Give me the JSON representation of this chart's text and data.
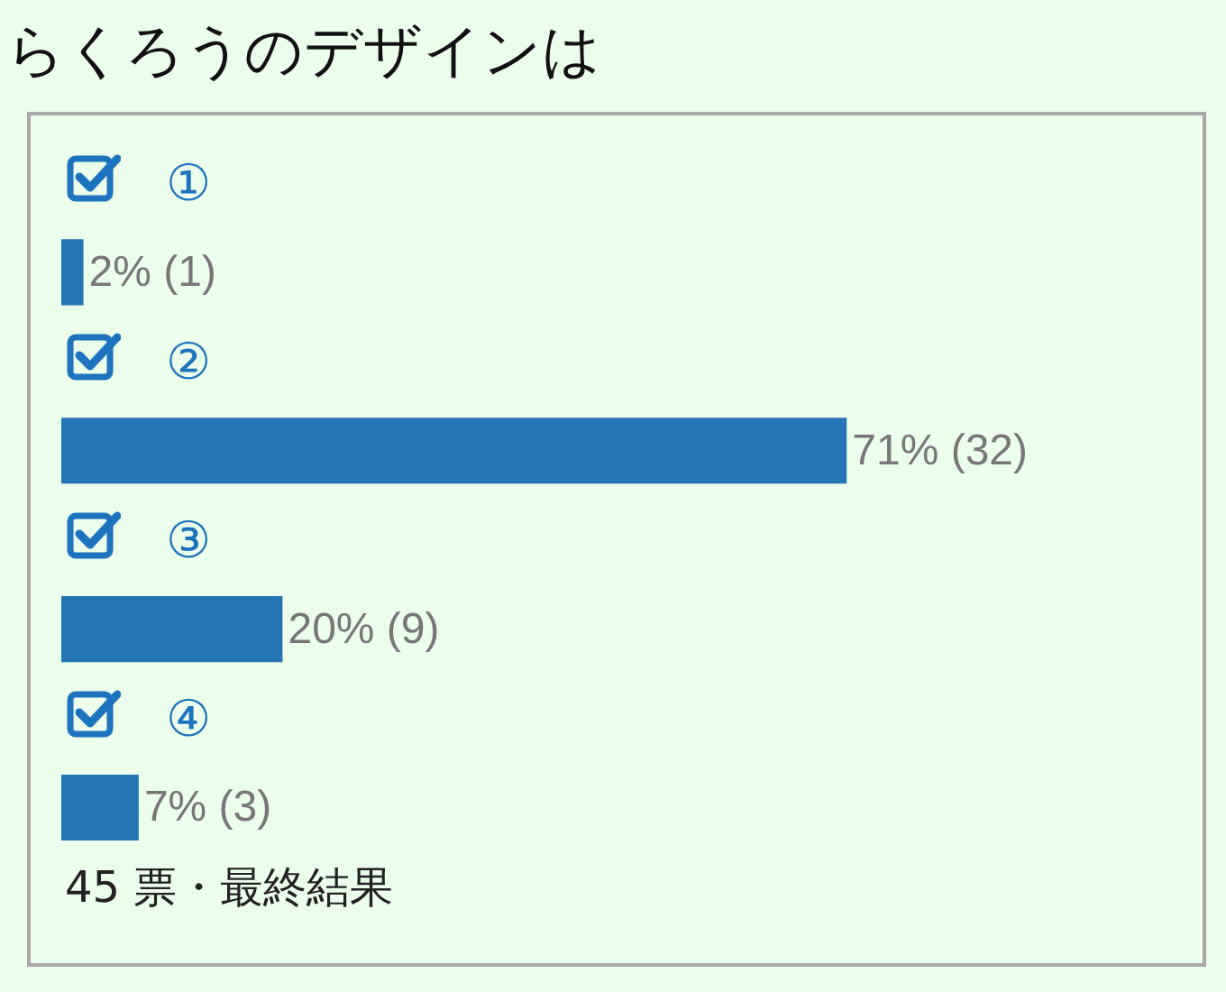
{
  "chart_data": {
    "type": "bar",
    "orientation": "horizontal",
    "title": "らくろうのデザインは",
    "categories": [
      "①",
      "②",
      "③",
      "④"
    ],
    "values": [
      2,
      71,
      20,
      7
    ],
    "value_labels": [
      "2% (1)",
      "71% (32)",
      "20% (9)",
      "7% (3)"
    ],
    "color": "#2575b5",
    "annotations": [
      "45 票・最終結果"
    ]
  }
}
